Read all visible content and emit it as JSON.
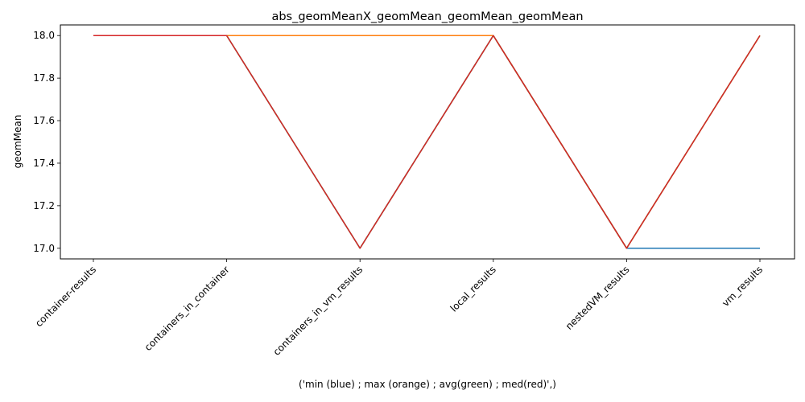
{
  "chart_data": {
    "type": "line",
    "title": "abs_geomMeanX_geomMean_geomMean_geomMean",
    "xlabel": "('min (blue) ; max (orange) ; avg(green) ; med(red)',)",
    "ylabel": "geomMean",
    "categories": [
      "container-results",
      "containers_in_container",
      "containers_in_vm_results",
      "local_results",
      "nestedVM_results",
      "vm_results"
    ],
    "ylim": [
      16.95,
      18.05
    ],
    "yticks": [
      "17.0",
      "17.2",
      "17.4",
      "17.6",
      "17.8",
      "18.0"
    ],
    "grid": false,
    "series": [
      {
        "color": "#1f77b4",
        "values": [
          18,
          18,
          17,
          18,
          17,
          17
        ]
      },
      {
        "color": "#ff7f0e",
        "values": [
          18,
          18,
          18,
          18,
          17,
          18
        ]
      },
      {
        "color": "#2ca02c",
        "values": [
          18,
          18,
          17,
          18,
          17,
          18
        ]
      },
      {
        "color": "#d62728",
        "values": [
          18,
          18,
          17,
          18,
          17,
          18
        ]
      }
    ]
  }
}
